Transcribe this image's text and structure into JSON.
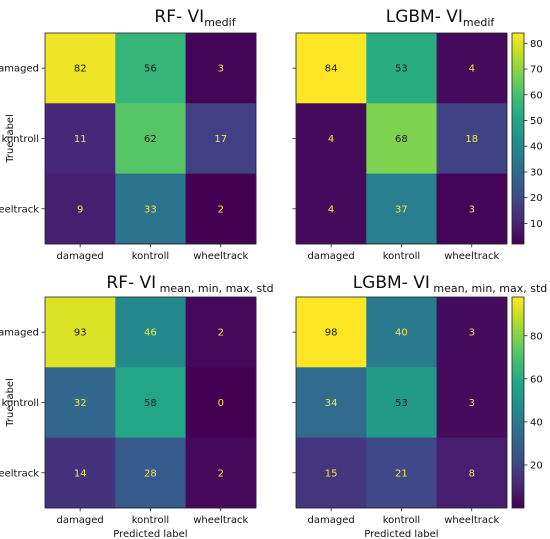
{
  "chart_data": [
    {
      "type": "heatmap",
      "title_main": "RF- VI",
      "title_sub": "medif",
      "row_labels": [
        "damaged",
        "kontroll",
        "wheeltrack"
      ],
      "col_labels": [
        "damaged",
        "kontroll",
        "wheeltrack"
      ],
      "values": [
        [
          82,
          56,
          3
        ],
        [
          11,
          62,
          17
        ],
        [
          9,
          33,
          2
        ]
      ],
      "ylabel": "True label",
      "xlabel": "",
      "vmin": 2,
      "vmax": 84
    },
    {
      "type": "heatmap",
      "title_main": "LGBM- VI",
      "title_sub": "medif",
      "row_labels": [
        "damaged",
        "kontroll",
        "wheeltrack"
      ],
      "col_labels": [
        "damaged",
        "kontroll",
        "wheeltrack"
      ],
      "values": [
        [
          84,
          53,
          4
        ],
        [
          4,
          68,
          18
        ],
        [
          4,
          37,
          3
        ]
      ],
      "ylabel": "",
      "xlabel": "",
      "vmin": 2,
      "vmax": 84
    },
    {
      "type": "heatmap",
      "title_main": "RF- VI",
      "title_sub": " mean, min, max, std",
      "row_labels": [
        "damaged",
        "kontroll",
        "wheeltrack"
      ],
      "col_labels": [
        "damaged",
        "kontroll",
        "wheeltrack"
      ],
      "values": [
        [
          93,
          46,
          2
        ],
        [
          32,
          58,
          0
        ],
        [
          14,
          28,
          2
        ]
      ],
      "ylabel": "True label",
      "xlabel": "Predicted label",
      "vmin": 0,
      "vmax": 98
    },
    {
      "type": "heatmap",
      "title_main": "LGBM- VI",
      "title_sub": " mean, min, max, std",
      "row_labels": [
        "damaged",
        "kontroll",
        "wheeltrack"
      ],
      "col_labels": [
        "damaged",
        "kontroll",
        "wheeltrack"
      ],
      "values": [
        [
          98,
          40,
          3
        ],
        [
          34,
          53,
          3
        ],
        [
          15,
          21,
          8
        ]
      ],
      "ylabel": "",
      "xlabel": "Predicted label",
      "vmin": 0,
      "vmax": 98
    }
  ],
  "colorbars": [
    {
      "vmin": 2,
      "vmax": 84,
      "ticks": [
        10,
        20,
        30,
        40,
        50,
        60,
        70,
        80
      ]
    },
    {
      "vmin": 0,
      "vmax": 98,
      "ticks": [
        20,
        40,
        60,
        80
      ]
    }
  ],
  "colormap": "viridis"
}
